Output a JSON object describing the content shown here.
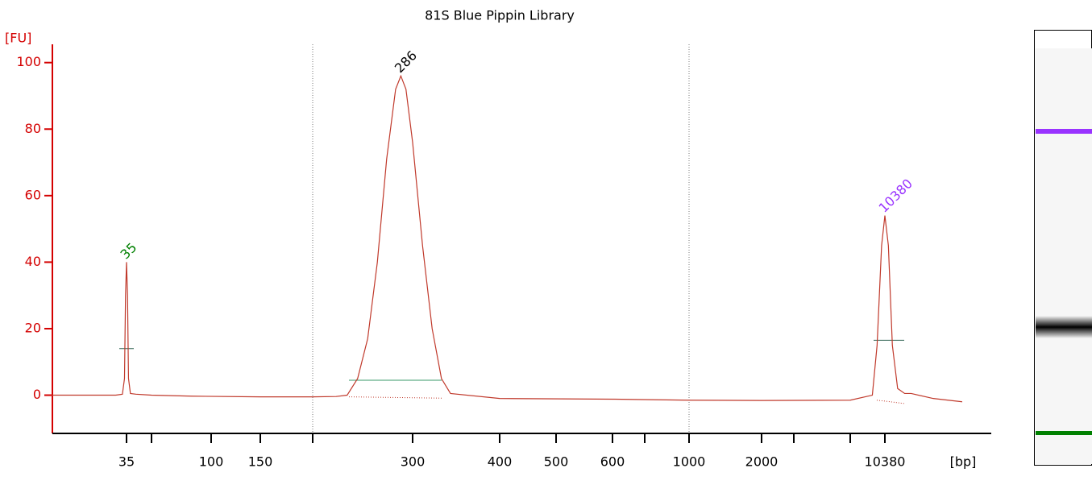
{
  "chart_data": {
    "type": "line",
    "title": "81S Blue Pippin Library",
    "ylabel": "[FU]",
    "xlabel": "[bp]",
    "log_scale_x": true,
    "ylim": [
      -11.5,
      105.5
    ],
    "yticks": [
      0,
      20,
      40,
      60,
      80,
      100
    ],
    "xticks": [
      35,
      100,
      150,
      300,
      400,
      500,
      600,
      1000,
      2000,
      10380
    ],
    "xminorticks": [
      50,
      200,
      700,
      3000,
      7000
    ],
    "xlines": [
      200,
      1000
    ],
    "axis_color": "#d40000",
    "series": [
      {
        "name": "81S Blue Pippin Library",
        "color": "#c0392b",
        "x": [
          12,
          20,
          30,
          33,
          34,
          34.5,
          35,
          35.5,
          36,
          37,
          40,
          50,
          80,
          150,
          200,
          220,
          230,
          240,
          250,
          260,
          270,
          280,
          286,
          292,
          300,
          310,
          320,
          330,
          340,
          400,
          600,
          1000,
          2000,
          7000,
          9000,
          9500,
          10000,
          10380,
          10800,
          11300,
          12000,
          13000,
          14000,
          18000,
          25000
        ],
        "values": [
          0,
          0,
          0,
          0.3,
          5,
          30,
          40,
          30,
          5,
          0.5,
          0.3,
          0,
          -0.3,
          -0.5,
          -0.5,
          -0.4,
          0,
          5,
          17,
          40,
          71,
          92,
          96,
          92,
          76,
          45,
          20,
          5,
          0.5,
          -1,
          -1.2,
          -1.5,
          -1.6,
          -1.5,
          0,
          15,
          45,
          54,
          45,
          15,
          2,
          0.5,
          0.5,
          -1,
          -2
        ]
      }
    ],
    "annotations": [
      {
        "text": "35",
        "x": 35,
        "y": 40,
        "color": "#008000"
      },
      {
        "text": "286",
        "x": 286,
        "y": 96,
        "color": "#000000"
      },
      {
        "text": "10380",
        "x": 10380,
        "y": 54,
        "color": "#9933ff"
      }
    ]
  }
}
